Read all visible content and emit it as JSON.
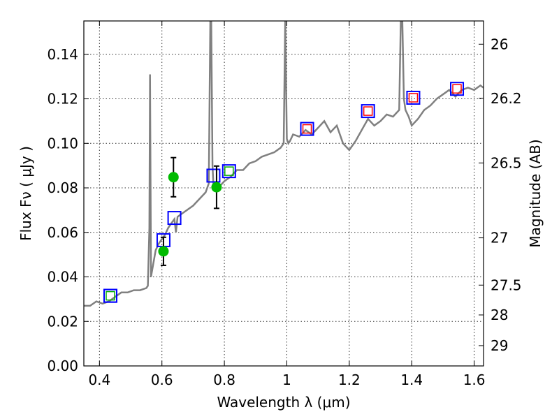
{
  "chart_data": {
    "type": "scatter",
    "xlabel": "Wavelength  λ (μm)",
    "ylabel": "Flux  Fν  ( μJy )",
    "ylabel_right": "Magnitude (AB)",
    "xlim": [
      0.35,
      1.63
    ],
    "ylim": [
      0.0,
      0.155
    ],
    "grid": true,
    "x_ticks": [
      {
        "value": 0.4,
        "label": "0.4"
      },
      {
        "value": 0.6,
        "label": "0.6"
      },
      {
        "value": 0.8,
        "label": "0.8"
      },
      {
        "value": 1.0,
        "label": "1"
      },
      {
        "value": 1.2,
        "label": "1.2"
      },
      {
        "value": 1.4,
        "label": "1.4"
      },
      {
        "value": 1.6,
        "label": "1.6"
      }
    ],
    "y_ticks": [
      {
        "value": 0.0,
        "label": "0.00"
      },
      {
        "value": 0.02,
        "label": "0.02"
      },
      {
        "value": 0.04,
        "label": "0.04"
      },
      {
        "value": 0.06,
        "label": "0.06"
      },
      {
        "value": 0.08,
        "label": "0.08"
      },
      {
        "value": 0.1,
        "label": "0.10"
      },
      {
        "value": 0.12,
        "label": "0.12"
      },
      {
        "value": 0.14,
        "label": "0.14"
      }
    ],
    "right_ticks": [
      {
        "value": 26,
        "label": "26"
      },
      {
        "value": 26.2,
        "label": "26.2"
      },
      {
        "value": 26.5,
        "label": "26.5"
      },
      {
        "value": 27,
        "label": "27"
      },
      {
        "value": 27.5,
        "label": "27.5"
      },
      {
        "value": 28,
        "label": "28"
      },
      {
        "value": 29,
        "label": "29"
      }
    ],
    "colors": {
      "model": "#808080",
      "observed": "#00bb00",
      "errorbar": "#000000",
      "model_box": "#0000ff",
      "nir_inner": "#ff0000",
      "opt_inner": "#00aa00"
    },
    "model_spectrum": {
      "x": [
        0.35,
        0.37,
        0.39,
        0.41,
        0.43,
        0.45,
        0.47,
        0.49,
        0.51,
        0.53,
        0.55,
        0.555,
        0.56,
        0.562,
        0.565,
        0.57,
        0.58,
        0.59,
        0.6,
        0.61,
        0.62,
        0.63,
        0.64,
        0.645,
        0.65,
        0.66,
        0.68,
        0.7,
        0.72,
        0.74,
        0.75,
        0.755,
        0.758,
        0.762,
        0.765,
        0.77,
        0.78,
        0.8,
        0.82,
        0.84,
        0.86,
        0.88,
        0.9,
        0.92,
        0.94,
        0.96,
        0.98,
        0.99,
        0.995,
        1.0,
        1.005,
        1.01,
        1.02,
        1.04,
        1.06,
        1.08,
        1.1,
        1.12,
        1.14,
        1.16,
        1.18,
        1.2,
        1.22,
        1.24,
        1.26,
        1.28,
        1.3,
        1.32,
        1.34,
        1.36,
        1.365,
        1.37,
        1.375,
        1.38,
        1.39,
        1.4,
        1.42,
        1.44,
        1.46,
        1.48,
        1.5,
        1.52,
        1.54,
        1.56,
        1.58,
        1.6,
        1.62,
        1.63
      ],
      "y": [
        0.027,
        0.027,
        0.029,
        0.028,
        0.029,
        0.031,
        0.033,
        0.033,
        0.034,
        0.034,
        0.035,
        0.036,
        0.062,
        0.131,
        0.04,
        0.044,
        0.052,
        0.055,
        0.057,
        0.059,
        0.062,
        0.064,
        0.066,
        0.06,
        0.067,
        0.068,
        0.07,
        0.072,
        0.075,
        0.078,
        0.082,
        0.155,
        0.155,
        0.09,
        0.081,
        0.079,
        0.08,
        0.083,
        0.085,
        0.088,
        0.088,
        0.091,
        0.092,
        0.094,
        0.095,
        0.096,
        0.098,
        0.1,
        0.155,
        0.102,
        0.1,
        0.101,
        0.104,
        0.103,
        0.106,
        0.104,
        0.107,
        0.11,
        0.105,
        0.108,
        0.1,
        0.097,
        0.101,
        0.106,
        0.111,
        0.108,
        0.11,
        0.113,
        0.112,
        0.115,
        0.155,
        0.155,
        0.12,
        0.115,
        0.112,
        0.108,
        0.111,
        0.115,
        0.117,
        0.12,
        0.122,
        0.124,
        0.121,
        0.124,
        0.125,
        0.124,
        0.126,
        0.125
      ]
    },
    "observed_points": [
      {
        "x": 0.605,
        "y": 0.0515,
        "yerr": 0.0063
      },
      {
        "x": 0.637,
        "y": 0.0848,
        "yerr": 0.0088
      },
      {
        "x": 0.775,
        "y": 0.0803,
        "yerr": 0.0095
      }
    ],
    "model_photometry": [
      {
        "x": 0.435,
        "y": 0.0315,
        "inner": "opt"
      },
      {
        "x": 0.435,
        "y": 0.0315,
        "inner": "none"
      },
      {
        "x": 0.605,
        "y": 0.0565,
        "inner": "none"
      },
      {
        "x": 0.64,
        "y": 0.0665,
        "inner": "none"
      },
      {
        "x": 0.765,
        "y": 0.0855,
        "inner": "none"
      },
      {
        "x": 0.815,
        "y": 0.0875,
        "inner": "opt"
      },
      {
        "x": 1.065,
        "y": 0.1065,
        "inner": "nir"
      },
      {
        "x": 1.26,
        "y": 0.1145,
        "inner": "nir"
      },
      {
        "x": 1.405,
        "y": 0.1205,
        "inner": "nir"
      },
      {
        "x": 1.545,
        "y": 0.1245,
        "inner": "nir"
      }
    ]
  }
}
